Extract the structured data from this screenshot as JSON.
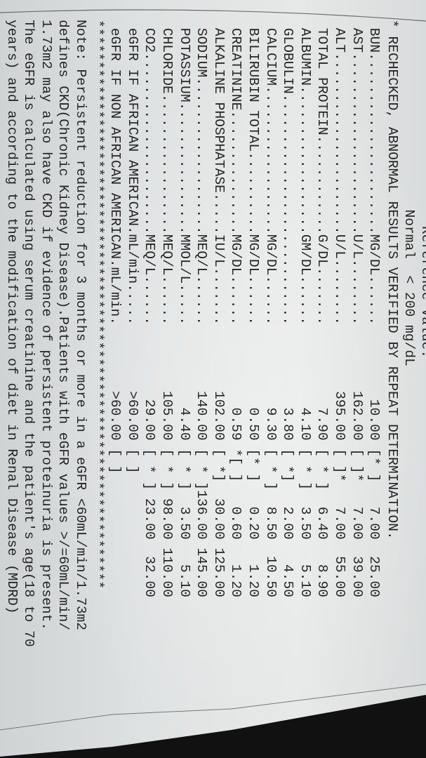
{
  "header": {
    "reference_label": "Reference Value:",
    "normal_label": "Normal",
    "normal_value": "< 200 mg/dL"
  },
  "recheck_note": {
    "marker": "*",
    "text": "RECHECKED, ABNORMAL RESULTS VERIFIED BY REPEAT DETERMINATION."
  },
  "results": [
    {
      "name": "BUN",
      "unit": "MG/DL",
      "value": "10.00",
      "flag": "[* ]",
      "low": "7.00",
      "high": "25.00"
    },
    {
      "name": "AST",
      "unit": "U/L",
      "value": "162.00",
      "flag": "[ ]*",
      "low": "7.00",
      "high": "39.00"
    },
    {
      "name": "ALT",
      "unit": "U/L",
      "value": "395.00",
      "flag": "[ ]*",
      "low": "7.00",
      "high": "55.00"
    },
    {
      "name": "TOTAL PROTEIN",
      "unit": "G/DL",
      "value": "7.90",
      "flag": "[ * ]",
      "low": "6.40",
      "high": "8.90"
    },
    {
      "name": "ALBUMIN",
      "unit": "GM/DL",
      "value": "4.10",
      "flag": "[ * ]",
      "low": "3.50",
      "high": "5.10"
    },
    {
      "name": "GLOBULIN",
      "unit": "",
      "value": "3.80",
      "flag": "[ *]",
      "low": "2.00",
      "high": "4.50"
    },
    {
      "name": "CALCIUM",
      "unit": "MG/DL",
      "value": "9.30",
      "flag": "[ * ]",
      "low": "8.50",
      "high": "10.50"
    },
    {
      "name": "BILIRUBIN TOTAL",
      "unit": "MG/DL",
      "value": "0.50",
      "flag": "[* ]",
      "low": "0.20",
      "high": "1.20"
    },
    {
      "name": "CREATININE",
      "unit": "MG/DL",
      "value": "0.59",
      "flag": "*[ ]",
      "low": "0.60",
      "high": "1.20"
    },
    {
      "name": "ALKALINE PHOSPHATASE",
      "unit": "IU/L",
      "value": "102.00",
      "flag": "[ *]",
      "low": "30.00",
      "high": "125.00"
    },
    {
      "name": "SODIUM",
      "unit": "MEQ/L",
      "value": "140.00",
      "flag": "[ * ]",
      "low": "136.00",
      "high": "145.00"
    },
    {
      "name": "POTASSIUM",
      "unit": "MMOL/L",
      "value": "4.40",
      "flag": "[ * ]",
      "low": "3.50",
      "high": "5.10"
    },
    {
      "name": "CHLORIDE",
      "unit": "MEQ/L",
      "value": "105.00",
      "flag": "[ * ]",
      "low": "98.00",
      "high": "110.00"
    },
    {
      "name": "CO2",
      "unit": "MEQ/L",
      "value": "29.00",
      "flag": "[ * ]",
      "low": "23.00",
      "high": "32.00"
    },
    {
      "name": "eGFR IF AFRICAN AMERICAN",
      "unit": "mL/min",
      "value": ">60.00",
      "flag": "[ ]",
      "low": "",
      "high": ""
    },
    {
      "name": "eGFR IF NON AFRICAN AMERICAN",
      "unit": "mL/min",
      "value": ">60.00",
      "flag": "[ ]",
      "low": "",
      "high": ""
    }
  ],
  "separator": "*********************************************************************",
  "note_lines": [
    "Note: Persistent reduction for 3 months or more in a eGFR <60mL/min/1.73m2",
    "defines CKD(Chronic Kidney Disease).Patients with eGFR values >/=60mL/min/",
    "1.73m2 may also have CKD if evidence of persistent proteinuria is present.",
    "The eGFR is calculated using serum creatinine and the patient's age(18 to 70",
    "years) and according to the modification of diet in Renal Disease (MDRD)"
  ]
}
